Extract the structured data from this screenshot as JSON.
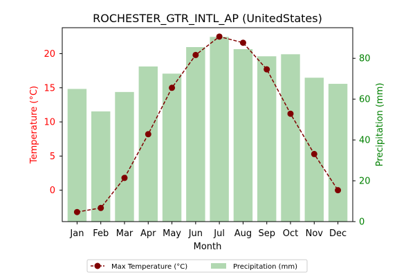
{
  "chart_data": {
    "type": "bar+line",
    "title": "ROCHESTER_GTR_INTL_AP (UnitedStates)",
    "xlabel": "Month",
    "categories": [
      "Jan",
      "Feb",
      "Mar",
      "Apr",
      "May",
      "Jun",
      "Jul",
      "Aug",
      "Sep",
      "Oct",
      "Nov",
      "Dec"
    ],
    "series": [
      {
        "name": "Max Temperature (°C)",
        "kind": "line",
        "axis": "left",
        "color": "#800000",
        "values": [
          -3.2,
          -2.6,
          1.8,
          8.2,
          15.0,
          19.8,
          22.5,
          21.6,
          17.7,
          11.2,
          5.3,
          0.0
        ]
      },
      {
        "name": "Precipitation (mm)",
        "kind": "bar",
        "axis": "right",
        "color": "#b1d8b1",
        "values": [
          65,
          54,
          63.5,
          76,
          72.5,
          85.5,
          90.5,
          84.5,
          81,
          82,
          70.5,
          67.5
        ]
      }
    ],
    "y_left": {
      "label": "Temperature (°C)",
      "color": "#ff0000",
      "lim": [
        -4.6,
        23.8
      ],
      "ticks": [
        0,
        5,
        10,
        15,
        20
      ]
    },
    "y_right": {
      "label": "Precipitation (mm)",
      "color": "#008000",
      "lim": [
        0,
        95
      ],
      "ticks": [
        0,
        20,
        40,
        60,
        80
      ]
    },
    "grid": false,
    "legend_position": "bottom-center"
  }
}
